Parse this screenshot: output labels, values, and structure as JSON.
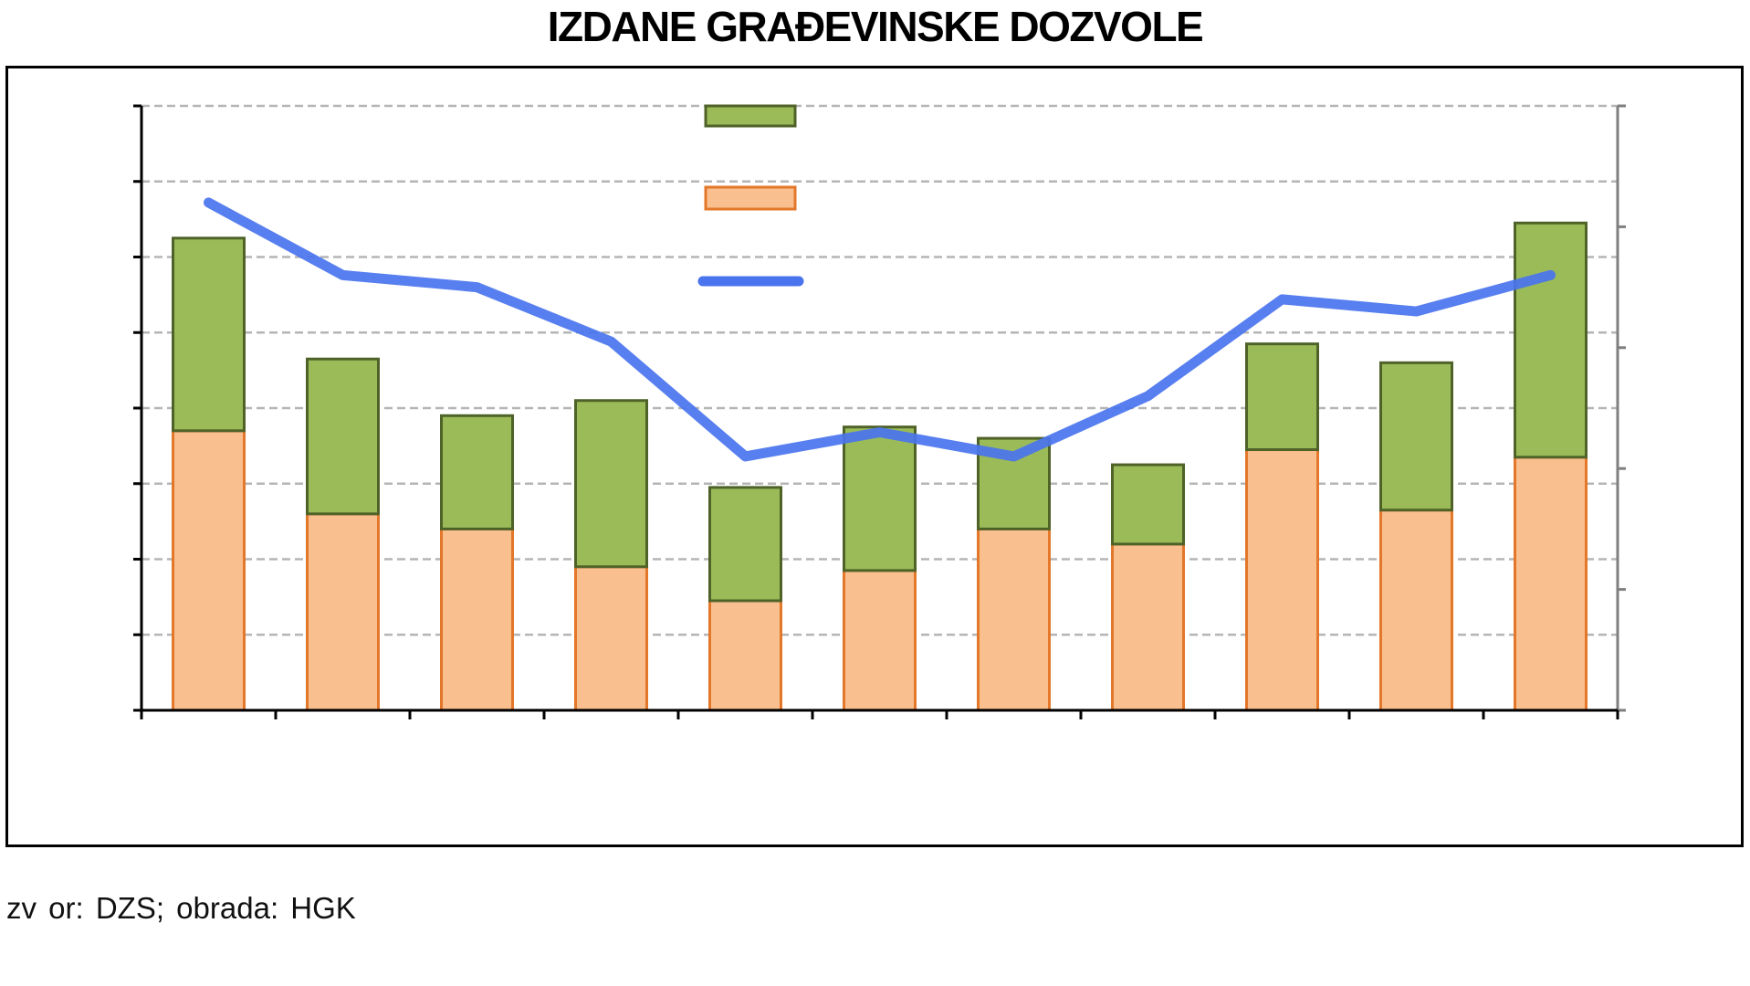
{
  "chart_data": {
    "type": "bar",
    "stacked": true,
    "title": "IZDANE GRAĐEVINSKE DOZVOLE",
    "categories": [
      "",
      "",
      "",
      "",
      "",
      "",
      "",
      "",
      "",
      "",
      ""
    ],
    "series": [
      {
        "type": "bar",
        "axis": "left",
        "color": "#f9bf8f",
        "border": "#e3772a",
        "values": [
          3.7,
          2.6,
          2.4,
          1.9,
          1.45,
          1.85,
          2.4,
          2.2,
          3.45,
          2.65,
          3.35
        ]
      },
      {
        "type": "bar",
        "axis": "left",
        "color": "#9bbb59",
        "border": "#4f6228",
        "values": [
          2.55,
          2.05,
          1.5,
          2.2,
          1.5,
          1.9,
          1.2,
          1.05,
          1.4,
          1.95,
          3.1
        ]
      },
      {
        "type": "line",
        "axis": "right",
        "color": "#4a74ee",
        "values": [
          4.2,
          3.6,
          3.5,
          3.05,
          2.1,
          2.3,
          2.1,
          2.6,
          3.4,
          3.3,
          3.6
        ]
      }
    ],
    "y_left": {
      "min": 0,
      "max": 8,
      "step": 1
    },
    "y_right": {
      "min": 0,
      "max": 5,
      "step": 1
    },
    "grid": true,
    "legend_position": "top-center"
  },
  "source_note": "zv or:  DZS;  obrada:  HGK"
}
